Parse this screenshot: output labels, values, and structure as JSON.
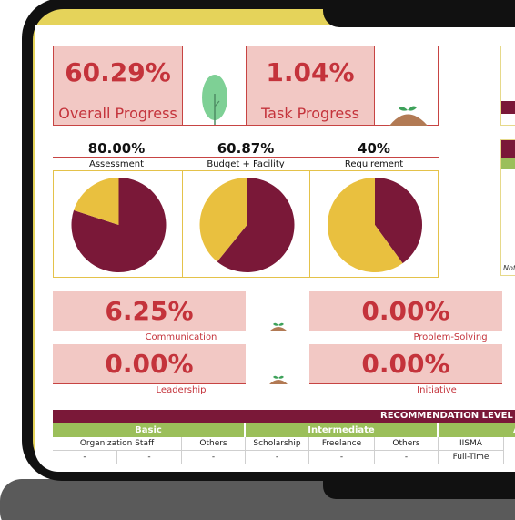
{
  "overall_progress": {
    "value": "60.29%",
    "label": "Overall Progress"
  },
  "task_progress": {
    "value": "1.04%",
    "label": "Task Progress"
  },
  "pies": [
    {
      "percent": "80.00%",
      "label": "Assessment",
      "share": 0.8
    },
    {
      "percent": "60.87%",
      "label": "Budget + Facility",
      "share": 0.6087
    },
    {
      "percent": "40%",
      "label": "Requirement",
      "share": 0.4
    }
  ],
  "skills": [
    {
      "value": "6.25%",
      "label": "Communication"
    },
    {
      "value": "0.00%",
      "label": "Problem-Solving"
    },
    {
      "value": "0.00%",
      "label": "Leadership"
    },
    {
      "value": "0.00%",
      "label": "Initiative"
    }
  ],
  "recommendation": {
    "title": "RECOMMENDATION LEVEL",
    "levels": [
      "Basic",
      "Intermediate",
      "A"
    ],
    "columns": [
      "Organization Staff",
      "Others",
      "Scholarship",
      "Freelance",
      "Others",
      "IISMA"
    ],
    "row1": [
      "-",
      "-",
      "-",
      "-",
      "-",
      "-",
      "-"
    ],
    "extra": "Full-Time"
  },
  "right_panel_note": "Not",
  "colors": {
    "maroon": "#7a1838",
    "yellow": "#e9c03f",
    "pink": "#f2c8c4",
    "red": "#c4333b",
    "green": "#9bbf5a"
  }
}
